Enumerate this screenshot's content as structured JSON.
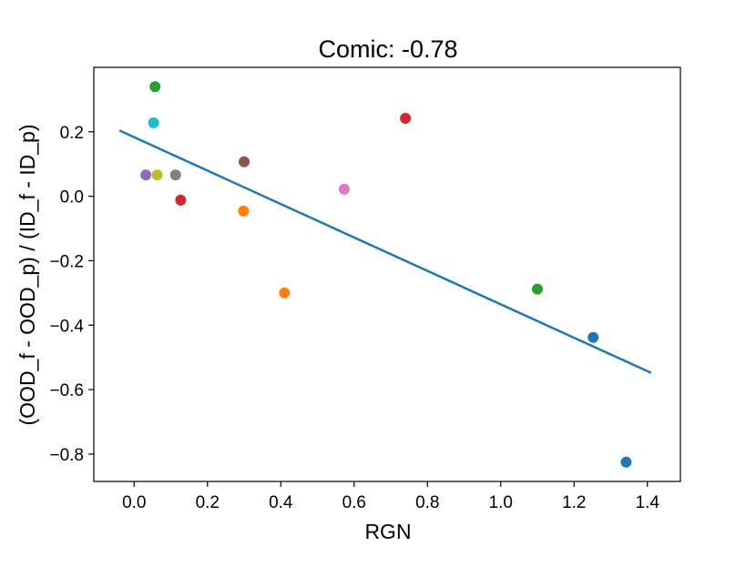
{
  "chart_data": {
    "type": "scatter",
    "title": "Comic:  -0.78",
    "xlabel": "RGN",
    "ylabel": "(OOD_f - OOD_p) / (ID_f - ID_p)",
    "xlim": [
      -0.11,
      1.49
    ],
    "ylim": [
      -0.885,
      0.4
    ],
    "xticks": [
      0.0,
      0.2,
      0.4,
      0.6,
      0.8,
      1.0,
      1.2,
      1.4
    ],
    "xtick_labels": [
      "0.0",
      "0.2",
      "0.4",
      "0.6",
      "0.8",
      "1.0",
      "1.2",
      "1.4"
    ],
    "yticks": [
      -0.8,
      -0.6,
      -0.4,
      -0.2,
      0.0,
      0.2
    ],
    "ytick_labels": [
      "−0.8",
      "−0.6",
      "−0.4",
      "−0.2",
      "0.0",
      "0.2"
    ],
    "grid": false,
    "points": [
      {
        "x": 0.032,
        "y": 0.066,
        "color": "#9467bd"
      },
      {
        "x": 0.053,
        "y": 0.228,
        "color": "#17becf"
      },
      {
        "x": 0.057,
        "y": 0.34,
        "color": "#2ca02c"
      },
      {
        "x": 0.063,
        "y": 0.066,
        "color": "#bcbd22"
      },
      {
        "x": 0.113,
        "y": 0.066,
        "color": "#7f7f7f"
      },
      {
        "x": 0.127,
        "y": -0.012,
        "color": "#d62728"
      },
      {
        "x": 0.298,
        "y": -0.046,
        "color": "#ff7f0e"
      },
      {
        "x": 0.3,
        "y": 0.107,
        "color": "#8c564b"
      },
      {
        "x": 0.41,
        "y": -0.3,
        "color": "#ff7f0e"
      },
      {
        "x": 0.573,
        "y": 0.022,
        "color": "#e377c2"
      },
      {
        "x": 0.74,
        "y": 0.242,
        "color": "#d62728"
      },
      {
        "x": 1.1,
        "y": -0.288,
        "color": "#2ca02c"
      },
      {
        "x": 1.252,
        "y": -0.438,
        "color": "#1f77b4"
      },
      {
        "x": 1.342,
        "y": -0.825,
        "color": "#1f77b4"
      }
    ],
    "fit_line": {
      "x": [
        -0.04,
        1.41
      ],
      "y": [
        0.204,
        -0.548
      ],
      "color": "#1f77b4"
    }
  }
}
